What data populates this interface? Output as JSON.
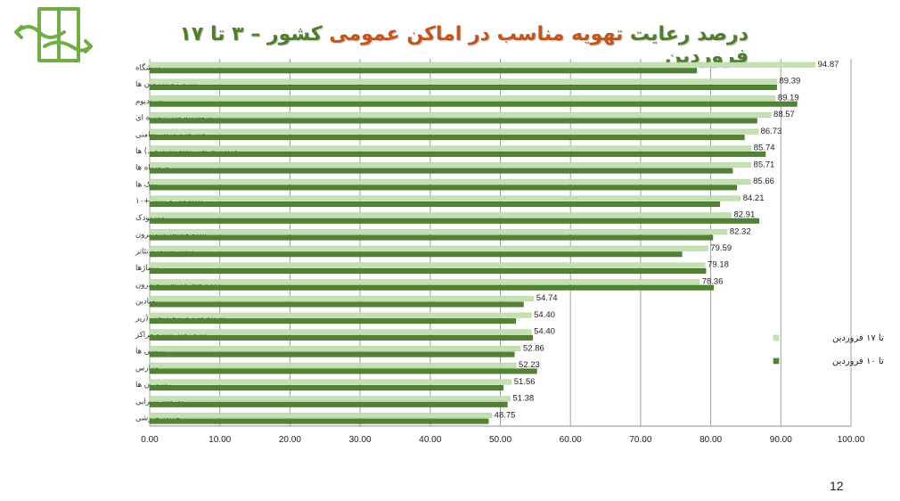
{
  "title": {
    "part1": "درصد رعایت ",
    "part2": "تهویه مناسب در اماکن عمومی",
    "part3": " کشور – ۳ تا ۱۷ فروردین"
  },
  "page_number": "12",
  "colors": {
    "series_light": "#c5e0b4",
    "series_dark": "#548235",
    "title_green": "#4e7d2c",
    "title_orange": "#c0561c",
    "logo": "#70ad47"
  },
  "chart_data": {
    "type": "bar",
    "orientation": "horizontal",
    "categories": [
      "دانشگاه",
      "ادارات و سازمان ها",
      "استادیوم",
      "فروشگاه های زنجیره ای",
      "هتل ها و مراکز اقامتی",
      "مراکز تفریحی (شهربازی و...) ها",
      "فرودگاه ها",
      "بانک ها",
      "پیشخوان و پلیس+۱۰",
      "مهدکودک",
      "پایانه مسافر بری برون",
      "سالن سینما و تئاتر",
      "پاساژها",
      "پایانه های مسافربری درون",
      "میادین",
      "کارگاه ها و صنایع کوچک (زیر",
      "استخرهای شنا و مراکز",
      "نانوایی ها",
      "مدارس",
      "رستوران ها",
      "تالارهای پذیرایی",
      "مراکز ورزشی"
    ],
    "series": [
      {
        "name": "تا ۱۷ فروردین",
        "values": [
          94.87,
          89.39,
          89.19,
          88.57,
          86.73,
          85.74,
          85.71,
          85.66,
          84.21,
          82.91,
          82.32,
          79.59,
          79.18,
          78.36,
          54.74,
          54.4,
          54.4,
          52.86,
          52.23,
          51.56,
          51.38,
          48.75
        ],
        "labels": [
          "94.87",
          "89.39",
          "89.19",
          "88.57",
          "86.73",
          "85.74",
          "85.71",
          "85.66",
          "84.21",
          "82.91",
          "82.32",
          "79.59",
          "79.18",
          "78.36",
          "54.74",
          "54.40",
          "54.40",
          "52.86",
          "52.23",
          "51.56",
          "51.38",
          "48.75"
        ]
      },
      {
        "name": "تا ۱۰ فروردین",
        "values": [
          78.0,
          89.4,
          92.3,
          86.6,
          84.8,
          87.8,
          83.1,
          83.7,
          81.3,
          86.9,
          80.3,
          75.9,
          79.3,
          80.4,
          53.3,
          52.2,
          54.6,
          52.0,
          55.2,
          50.4,
          51.0,
          48.3
        ]
      }
    ],
    "x_ticks": [
      "0.00",
      "10.00",
      "20.00",
      "30.00",
      "40.00",
      "50.00",
      "60.00",
      "70.00",
      "80.00",
      "90.00",
      "100.00"
    ],
    "xlim": [
      0,
      100
    ],
    "grid": true,
    "legend_position": "right"
  }
}
